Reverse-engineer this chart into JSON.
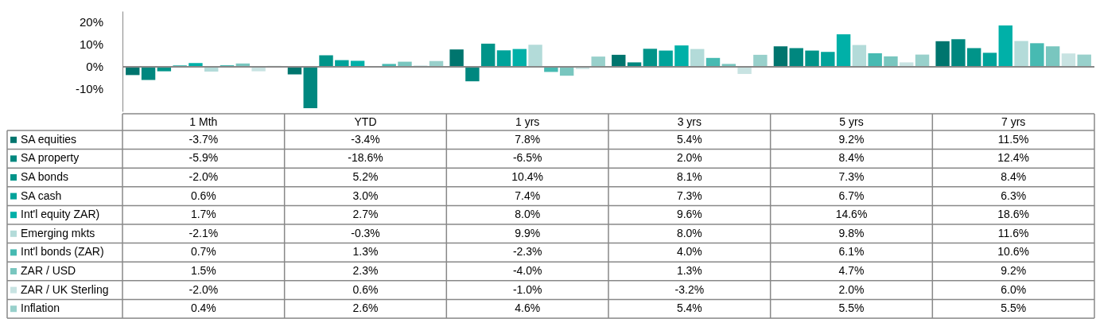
{
  "chart_data": {
    "type": "bar",
    "categories": [
      "1 Mth",
      "YTD",
      "1 yrs",
      "3 yrs",
      "5 yrs",
      "7 yrs"
    ],
    "ylim": [
      -20,
      25
    ],
    "legend": "left",
    "yticks": [
      {
        "value": -10,
        "label": "-10%"
      },
      {
        "value": 0,
        "label": "0%"
      },
      {
        "value": 10,
        "label": "10%"
      },
      {
        "value": 20,
        "label": "20%"
      }
    ],
    "series": [
      {
        "name": "SA equities",
        "color": "#00756e",
        "values": [
          -3.7,
          -3.4,
          7.8,
          5.4,
          9.2,
          11.5
        ],
        "value_labels": [
          "-3.7%",
          "-3.4%",
          "7.8%",
          "5.4%",
          "9.2%",
          "11.5%"
        ]
      },
      {
        "name": "SA property",
        "color": "#00877f",
        "values": [
          -5.9,
          -18.6,
          -6.5,
          2.0,
          8.4,
          12.4
        ],
        "value_labels": [
          "-5.9%",
          "-18.6%",
          "-6.5%",
          "2.0%",
          "8.4%",
          "12.4%"
        ]
      },
      {
        "name": "SA bonds",
        "color": "#009489",
        "values": [
          -2.0,
          5.2,
          10.4,
          8.1,
          7.3,
          8.4
        ],
        "value_labels": [
          "-2.0%",
          "5.2%",
          "10.4%",
          "8.1%",
          "7.3%",
          "8.4%"
        ]
      },
      {
        "name": "SA cash",
        "color": "#00a39a",
        "values": [
          0.6,
          3.0,
          7.4,
          7.3,
          6.7,
          6.3
        ],
        "value_labels": [
          "0.6%",
          "3.0%",
          "7.4%",
          "7.3%",
          "6.7%",
          "6.3%"
        ]
      },
      {
        "name": "Int'l equity ZAR)",
        "color": "#00b0a8",
        "values": [
          1.7,
          2.7,
          8.0,
          9.6,
          14.6,
          18.6
        ],
        "value_labels": [
          "1.7%",
          "2.7%",
          "8.0%",
          "9.6%",
          "14.6%",
          "18.6%"
        ]
      },
      {
        "name": "Emerging mkts",
        "color": "#b3dbd9",
        "values": [
          -2.1,
          -0.3,
          9.9,
          8.0,
          9.8,
          11.6
        ],
        "value_labels": [
          "-2.1%",
          "-0.3%",
          "9.9%",
          "8.0%",
          "9.8%",
          "11.6%"
        ]
      },
      {
        "name": "Int'l bonds (ZAR)",
        "color": "#47bab2",
        "values": [
          0.7,
          1.3,
          -2.3,
          4.0,
          6.1,
          10.6
        ],
        "value_labels": [
          "0.7%",
          "1.3%",
          "-2.3%",
          "4.0%",
          "6.1%",
          "10.6%"
        ]
      },
      {
        "name": "ZAR / USD",
        "color": "#79c6bf",
        "values": [
          1.5,
          2.3,
          -4.0,
          1.3,
          4.7,
          9.2
        ],
        "value_labels": [
          "1.5%",
          "2.3%",
          "-4.0%",
          "1.3%",
          "4.7%",
          "9.2%"
        ]
      },
      {
        "name": "ZAR / UK Sterling",
        "color": "#c8e3e2",
        "values": [
          -2.0,
          0.6,
          -1.0,
          -3.2,
          2.0,
          6.0
        ],
        "value_labels": [
          "-2.0%",
          "0.6%",
          "-1.0%",
          "-3.2%",
          "2.0%",
          "6.0%"
        ]
      },
      {
        "name": "Inflation",
        "color": "#98d0cb",
        "values": [
          0.4,
          2.6,
          4.6,
          5.4,
          5.5,
          5.5
        ],
        "value_labels": [
          "0.4%",
          "2.6%",
          "4.6%",
          "5.4%",
          "5.5%",
          "5.5%"
        ]
      }
    ]
  }
}
